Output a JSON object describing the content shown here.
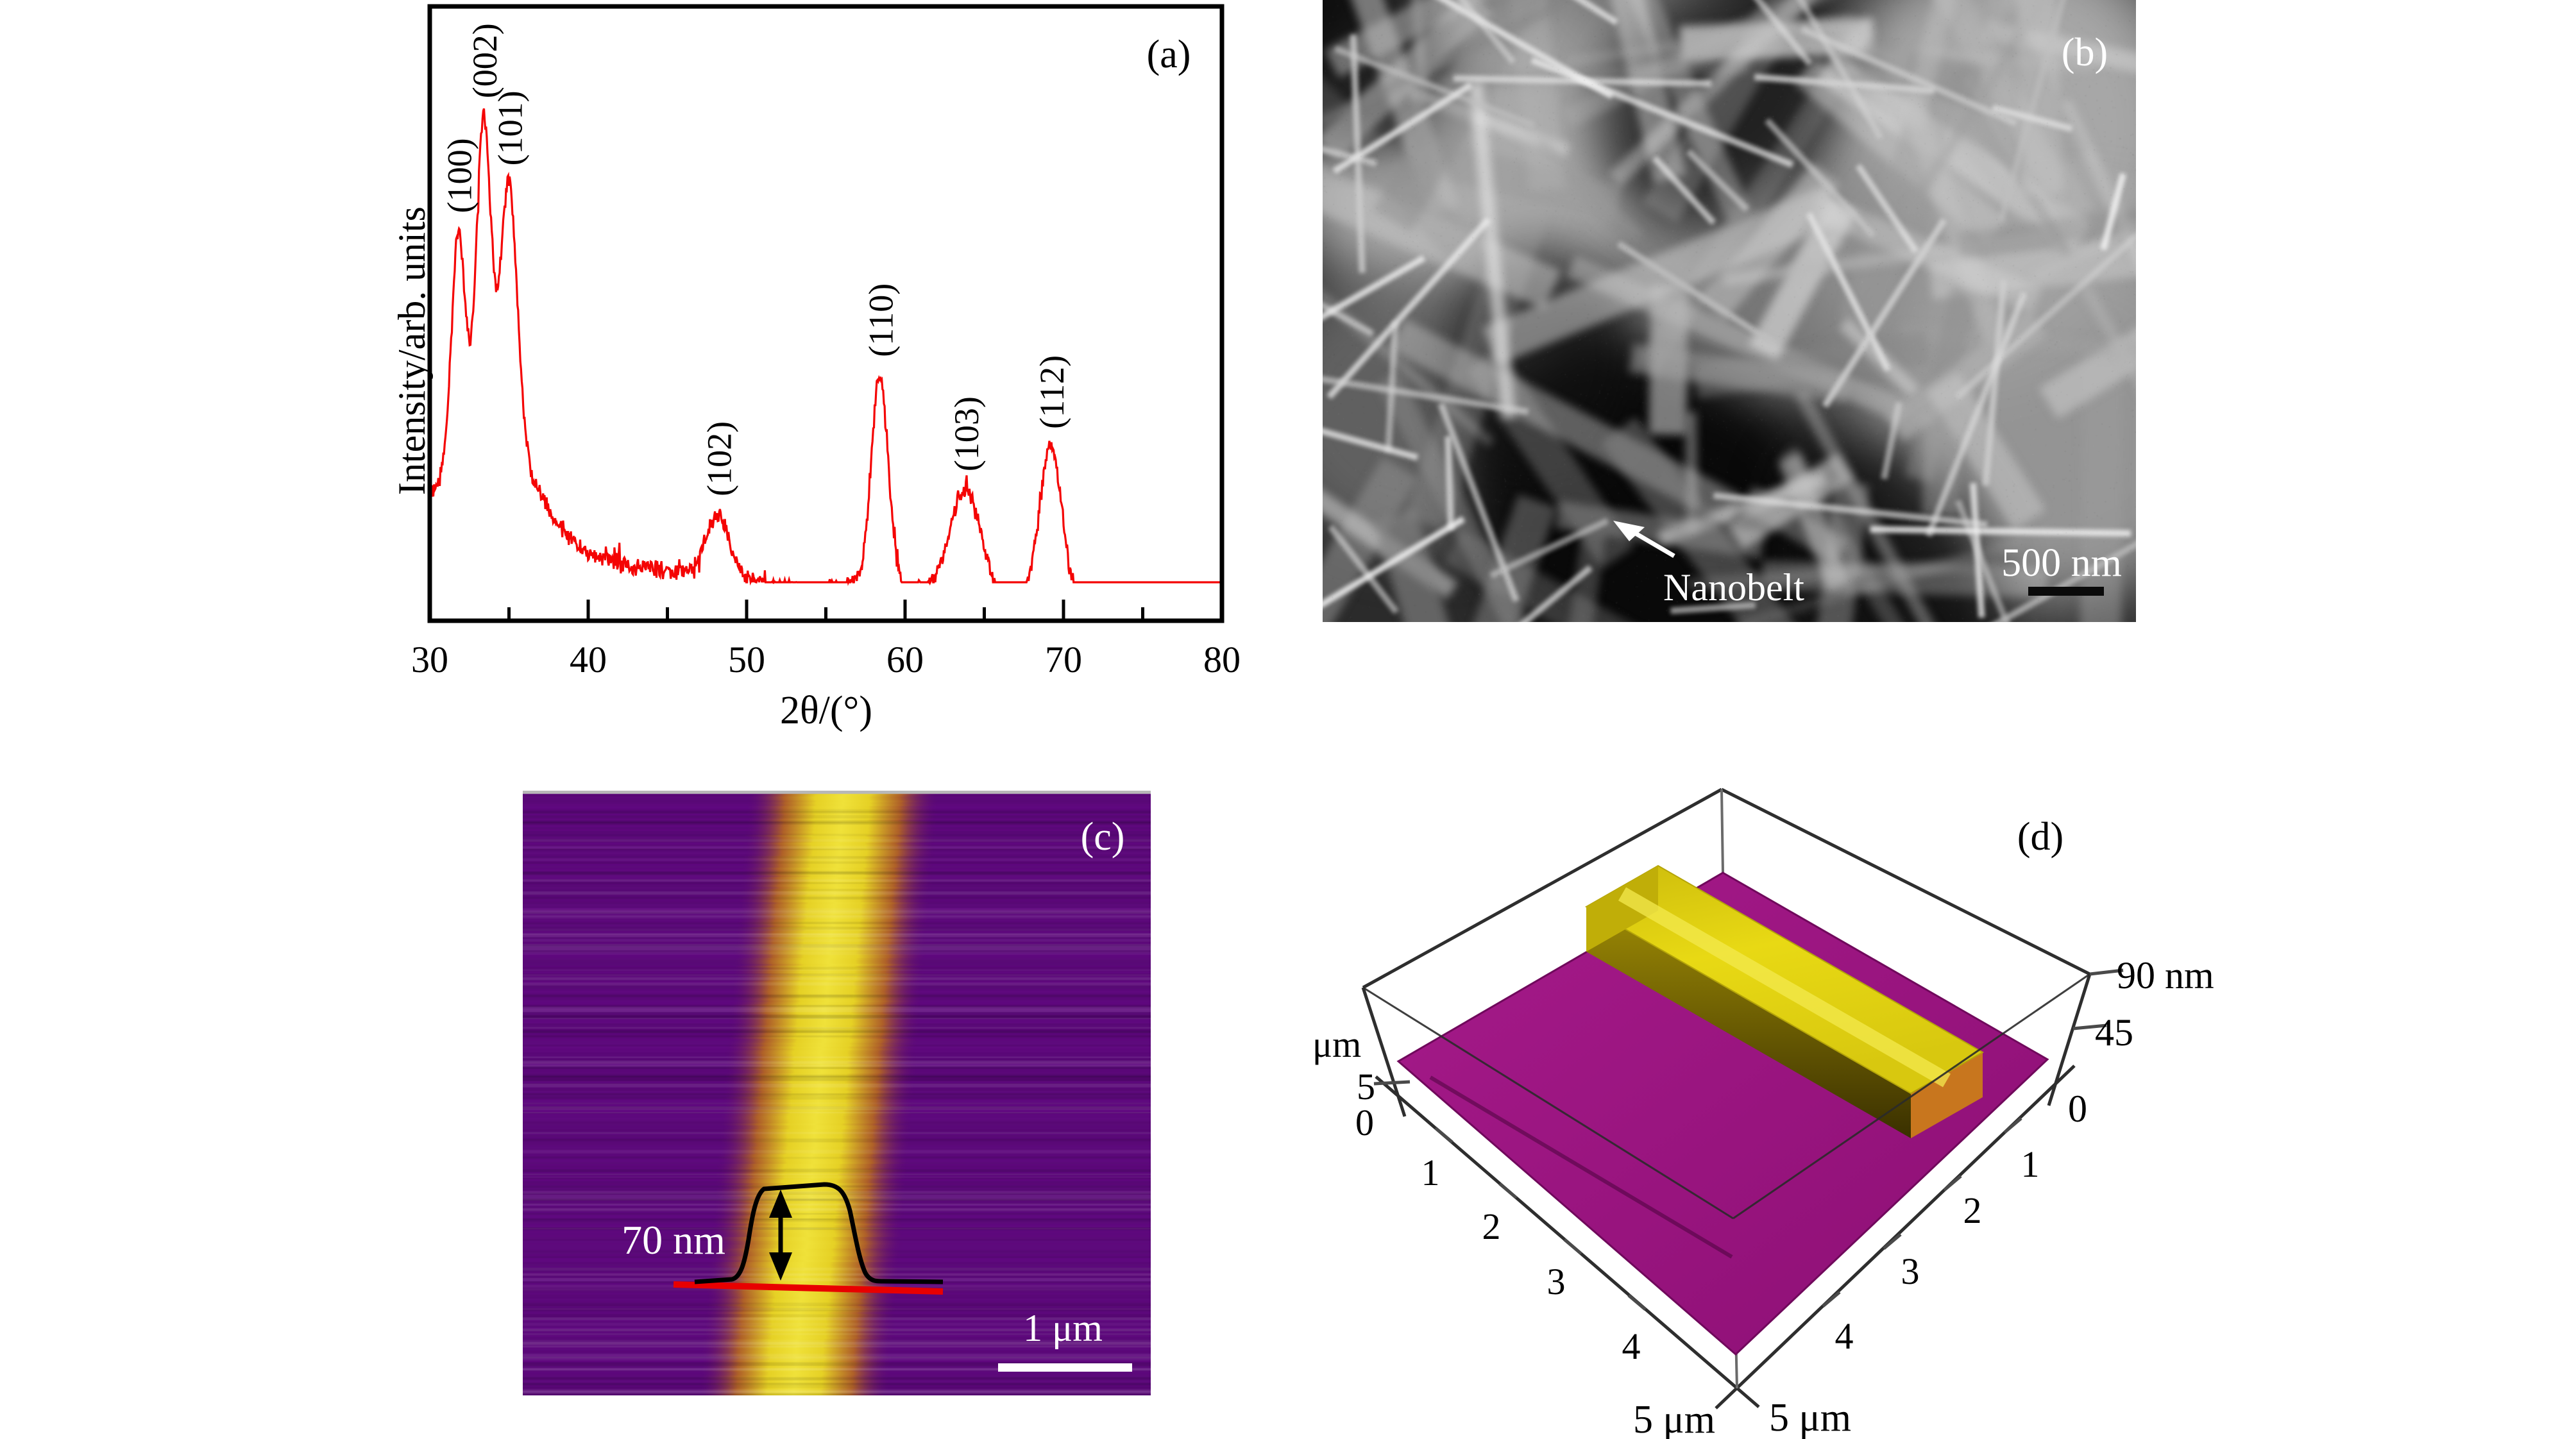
{
  "figure": {
    "panel_labels": {
      "a": "(a)",
      "b": "(b)",
      "c": "(c)",
      "d": "(d)"
    }
  },
  "panel_a": {
    "label": "(a)",
    "xlabel": "2θ/(°)",
    "ylabel": "Intensity/arb. units",
    "x_ticks": [
      30,
      40,
      50,
      60,
      70,
      80
    ],
    "curve_color": "#f40404"
  },
  "panel_b": {
    "label": "(b)",
    "annotation": "Nanobelt",
    "scale_bar_text": "500 nm"
  },
  "panel_c": {
    "label": "(c)",
    "height_text": "70 nm",
    "scale_bar_text": "1 μm"
  },
  "panel_d": {
    "label": "(d)",
    "left_axis": {
      "unit": "μm",
      "ticks": [
        "5",
        "0"
      ]
    },
    "x_axis": {
      "ticks": [
        "1",
        "2",
        "3",
        "4"
      ],
      "end_label": "5 μm"
    },
    "y_axis": {
      "ticks": [
        "1",
        "2",
        "3",
        "4"
      ],
      "end_label": "5 μm"
    },
    "z_axis": {
      "ticks": [
        "90 nm",
        "45",
        "0"
      ]
    }
  },
  "colors": {
    "xrd_red": "#f40404",
    "afm_purple": "#5c0a78",
    "afm_yellow": "#ecd926",
    "afm_orange": "#c27b24",
    "surface_magenta": "#9b1480",
    "ridge_yellow": "#e0cf10",
    "profile_red": "#e80000"
  },
  "chart_data": [
    {
      "id": "a",
      "type": "line",
      "title": "XRD pattern of ZnO nanobelts",
      "xlabel": "2θ/(°)",
      "ylabel": "Intensity/arb. units",
      "xlim": [
        30,
        80
      ],
      "x_ticks": [
        30,
        40,
        50,
        60,
        70,
        80
      ],
      "grid": false,
      "line_color": "#f40404",
      "baseline_frac": 0.075,
      "baseline_slope_per_deg": -0.0005,
      "noise_frac": 0.015,
      "peaks": [
        {
          "hkl": "(100)",
          "two_theta": 31.8,
          "apex_frac": 0.75,
          "width_deg": 0.42
        },
        {
          "hkl": "(002)",
          "two_theta": 33.4,
          "apex_frac": 1.0,
          "width_deg": 0.45
        },
        {
          "hkl": "(101)",
          "two_theta": 35.0,
          "apex_frac": 0.855,
          "width_deg": 0.52
        },
        {
          "hkl": "(102)",
          "two_theta": 48.2,
          "apex_frac": 0.125,
          "width_deg": 0.75
        },
        {
          "hkl": "(110)",
          "two_theta": 58.4,
          "apex_frac": 0.433,
          "width_deg": 0.52
        },
        {
          "hkl": "(103)",
          "two_theta": 63.8,
          "apex_frac": 0.18,
          "width_deg": 0.95
        },
        {
          "hkl": "(112)",
          "two_theta": 69.2,
          "apex_frac": 0.274,
          "width_deg": 0.72
        }
      ],
      "broad_humps": [
        {
          "two_theta": 33.8,
          "apex_frac": 0.27,
          "width_deg": 2.6
        },
        {
          "two_theta": 58.4,
          "apex_frac": 0.05,
          "width_deg": 1.8
        },
        {
          "two_theta": 64.0,
          "apex_frac": 0.05,
          "width_deg": 2.2
        },
        {
          "two_theta": 69.5,
          "apex_frac": 0.05,
          "width_deg": 1.9
        }
      ]
    },
    {
      "id": "c",
      "type": "afm_image",
      "title": "AFM image of a single nanobelt",
      "belt_height_nm": 70,
      "scale_bar": "1 μm",
      "profile_plateau_half_width_um": 0.35
    },
    {
      "id": "d",
      "type": "surface",
      "title": "3D AFM topography",
      "xlabel": "5 μm",
      "ylabel": "5 μm",
      "zlabel": "nm",
      "x_range_um": [
        0,
        5
      ],
      "y_range_um": [
        0,
        5
      ],
      "z_ticks_nm": [
        0,
        45,
        90
      ],
      "belt_height_nm": 70,
      "belt_center_um": 1.55,
      "belt_width_um": 1.1
    }
  ]
}
